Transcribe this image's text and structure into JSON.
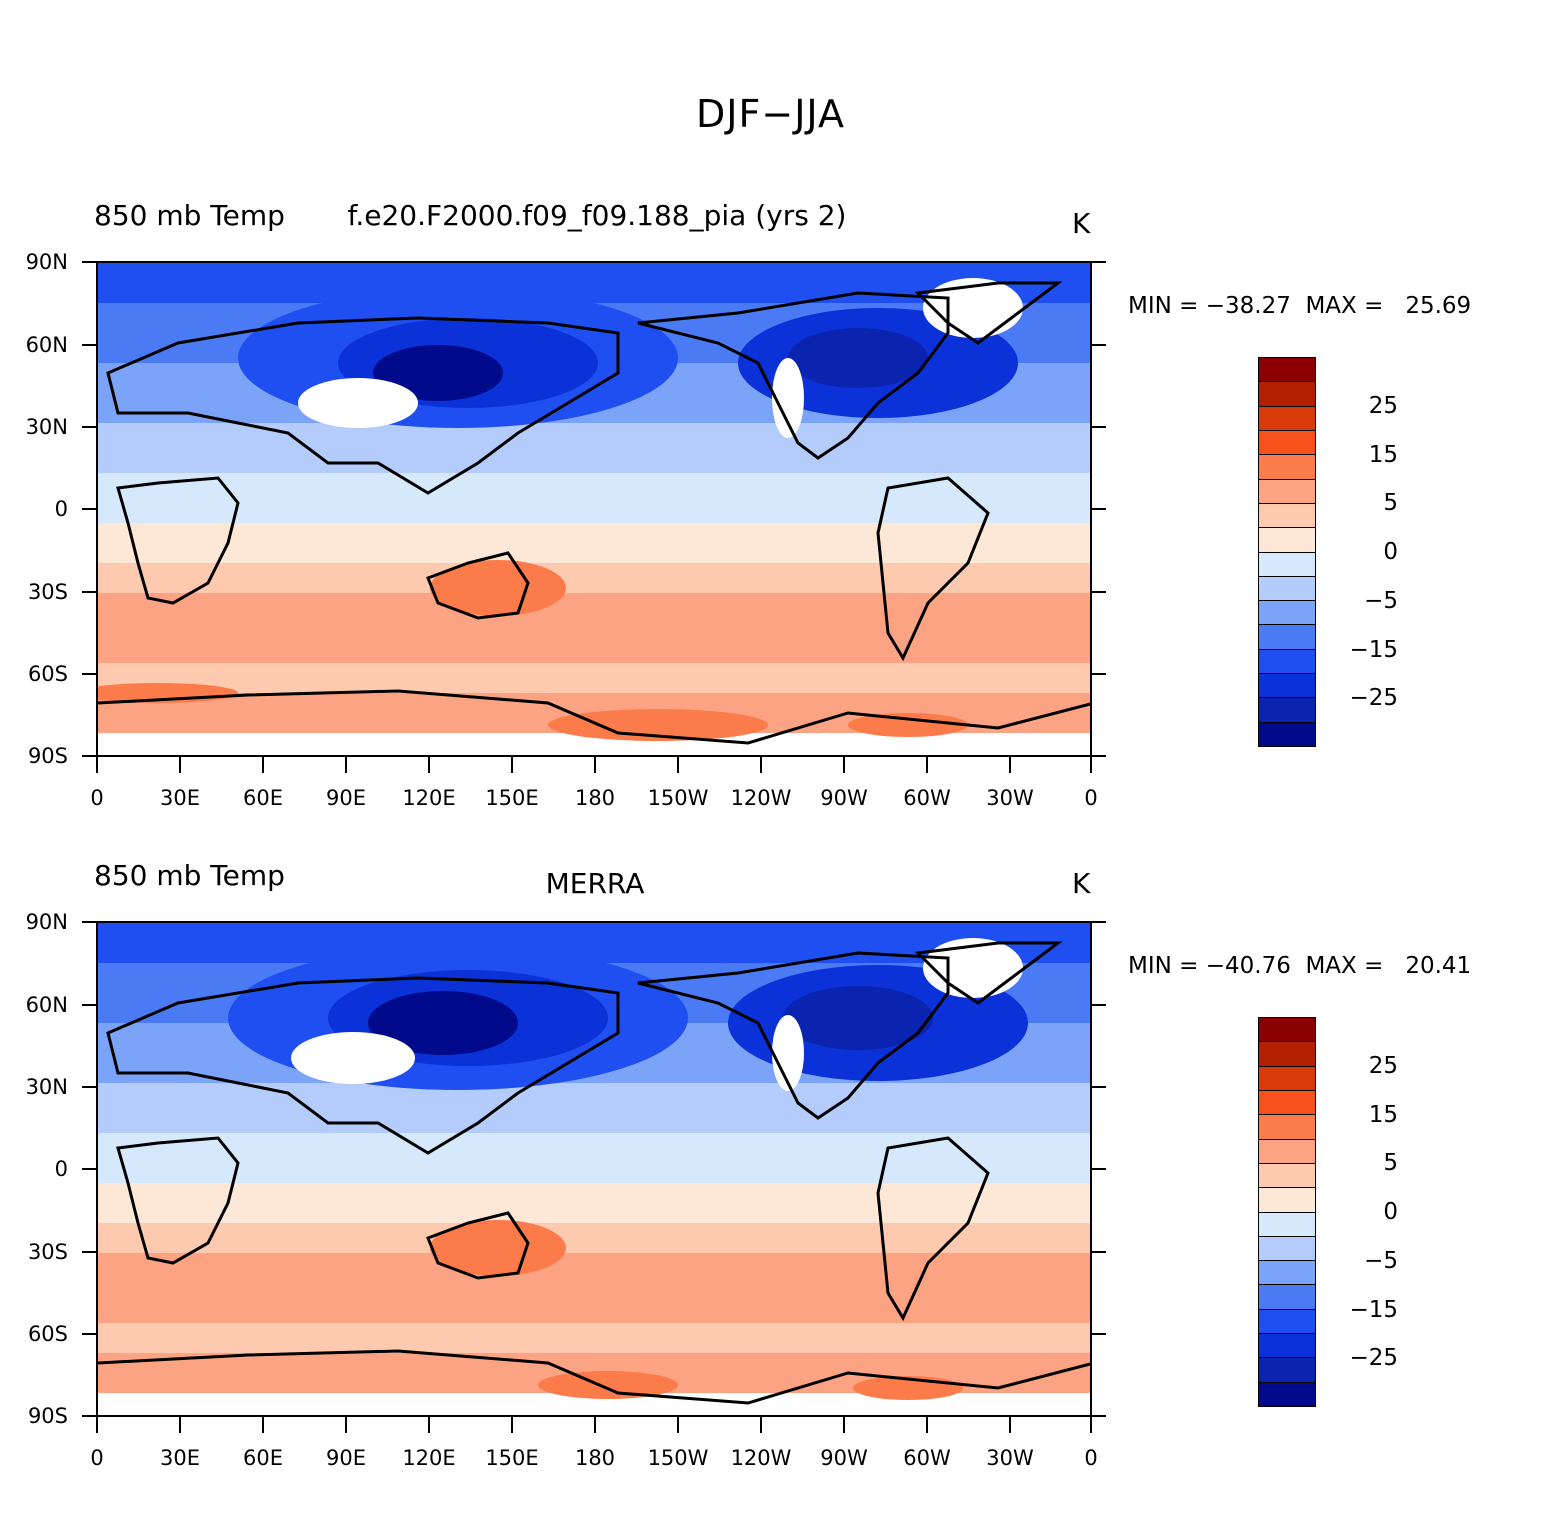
{
  "figure": {
    "title": "DJF−JJA"
  },
  "axes": {
    "y_ticks": [
      "90N",
      "60N",
      "30N",
      "0",
      "30S",
      "60S",
      "90S"
    ],
    "x_ticks": [
      "0",
      "30E",
      "60E",
      "90E",
      "120E",
      "150E",
      "180",
      "150W",
      "120W",
      "90W",
      "60W",
      "30W",
      "0"
    ]
  },
  "colorbar": {
    "colors": [
      "#8b0000",
      "#b32000",
      "#d93a0a",
      "#f7521c",
      "#fb7b4b",
      "#fca383",
      "#fdcab0",
      "#fde8d8",
      "#d5e8fc",
      "#b3ccfb",
      "#7ba4f9",
      "#4a7bf5",
      "#1f4ff0",
      "#0b32d8",
      "#0a24b0",
      "#000a8b"
    ],
    "labels": [
      "25",
      "15",
      "5",
      "0",
      "−5",
      "−15",
      "−25"
    ]
  },
  "panels": [
    {
      "left_label": "850 mb Temp",
      "center_label": "f.e20.F2000.f09_f09.188_pia (yrs 2)",
      "units": "K",
      "min_max": "MIN = −38.27  MAX =   25.69",
      "min": -38.27,
      "max": 25.69
    },
    {
      "left_label": "850 mb Temp",
      "center_label": "MERRA",
      "units": "K",
      "min_max": "MIN = −40.76  MAX =   20.41",
      "min": -40.76,
      "max": 20.41
    }
  ]
}
